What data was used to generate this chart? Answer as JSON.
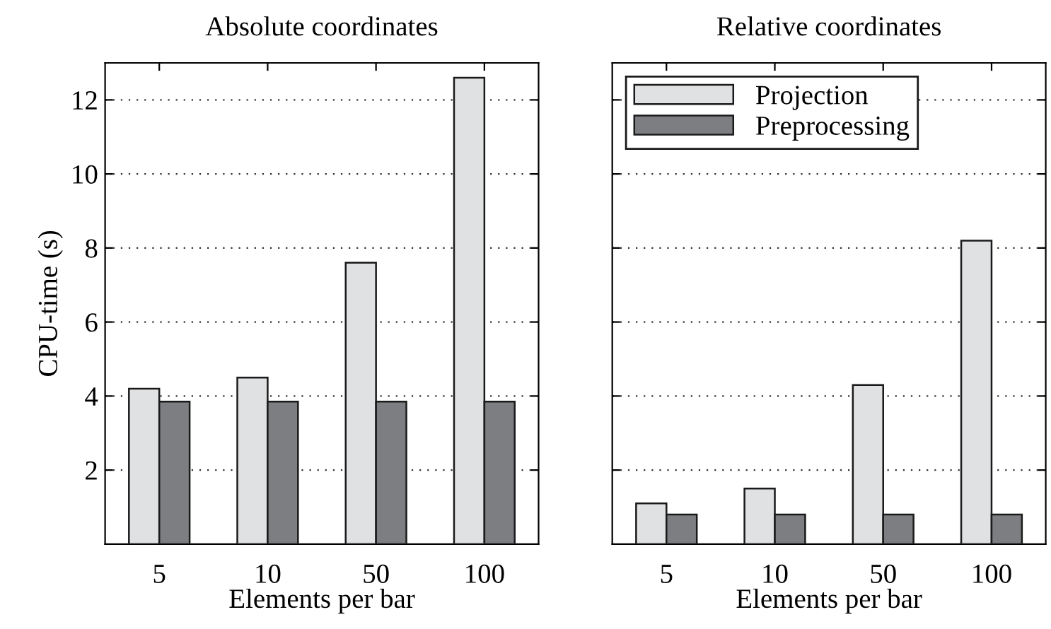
{
  "chart_data": [
    {
      "type": "bar",
      "title": "Absolute coordinates",
      "xlabel": "Elements per bar",
      "ylabel": "CPU-time (s)",
      "categories": [
        "5",
        "10",
        "50",
        "100"
      ],
      "series": [
        {
          "color": "#e0e1e3",
          "values": [
            4.2,
            4.5,
            7.6,
            12.6
          ]
        },
        {
          "color": "#7d7e82",
          "values": [
            3.85,
            3.85,
            3.85,
            3.85
          ]
        }
      ],
      "ylim": [
        0,
        13
      ],
      "yticks": [
        2,
        4,
        6,
        8,
        10,
        12
      ],
      "grid": "y"
    },
    {
      "type": "bar",
      "title": "Relative coordinates",
      "xlabel": "Elements per bar",
      "categories": [
        "5",
        "10",
        "50",
        "100"
      ],
      "series": [
        {
          "name": "Projection",
          "color": "#e0e1e3",
          "values": [
            1.1,
            1.5,
            4.3,
            8.2
          ]
        },
        {
          "name": "Preprocessing",
          "color": "#7d7e82",
          "values": [
            0.8,
            0.8,
            0.8,
            0.8
          ]
        }
      ],
      "ylim": [
        0,
        13
      ],
      "yticks": [
        2,
        4,
        6,
        8,
        10,
        12
      ],
      "grid": "y",
      "legend": "top left",
      "tick_labels": "x"
    }
  ]
}
